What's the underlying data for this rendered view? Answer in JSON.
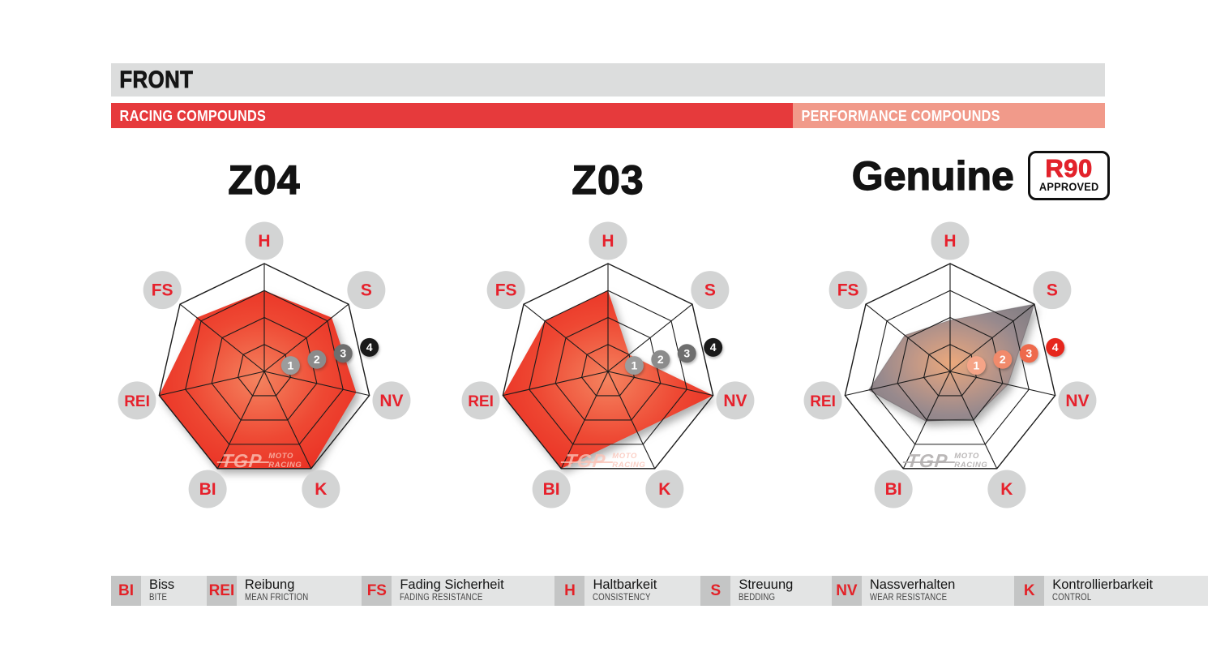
{
  "header": {
    "title": "FRONT",
    "racing_label": "RACING COMPOUNDS",
    "performance_label": "PERFORMANCE COMPOUNDS",
    "title_bar_color": "#dcdddd",
    "racing_color": "#e63a3c",
    "performance_color": "#f19a8a"
  },
  "charts": [
    {
      "title": "Z04",
      "group": "RACING COMPOUNDS",
      "fill_stops": [
        [
          "0%",
          "#f4835f"
        ],
        [
          "55%",
          "#ee4833"
        ],
        [
          "100%",
          "#e92c21"
        ]
      ],
      "marker_colors": [
        "#9c9c9c",
        "#8b8b8b",
        "#6e6e6e",
        "#1a1a1a"
      ],
      "stroke": "none"
    },
    {
      "title": "Z03",
      "group": "RACING COMPOUNDS",
      "fill_stops": [
        [
          "0%",
          "#f4835f"
        ],
        [
          "55%",
          "#ee4833"
        ],
        [
          "100%",
          "#e92c21"
        ]
      ],
      "marker_colors": [
        "#9c9c9c",
        "#8b8b8b",
        "#6e6e6e",
        "#1a1a1a"
      ],
      "stroke": "none"
    },
    {
      "title": "Genuine",
      "group": "PERFORMANCE COMPOUNDS",
      "badge": {
        "r90": "R90",
        "approved": "APPROVED"
      },
      "fill_stops": [
        [
          "0%",
          "#eaa87c"
        ],
        [
          "38%",
          "#bf9787"
        ],
        [
          "72%",
          "#97898d"
        ],
        [
          "100%",
          "#868085"
        ]
      ],
      "marker_colors": [
        "#f5a487",
        "#f18a6b",
        "#ee6a4c",
        "#e6271d"
      ],
      "stroke": "rgba(95,90,95,0.45)"
    }
  ],
  "axis_label_color": "#e6212c",
  "axis_circle_color": "#d3d4d4",
  "grid_color": "#1b1b1b",
  "watermark": {
    "main": "TGP",
    "sub1": "MOTO",
    "sub2": "RACING"
  },
  "legend": {
    "items": [
      {
        "abbr": "BI",
        "de": "Biss",
        "en": "BITE"
      },
      {
        "abbr": "REI",
        "de": "Reibung",
        "en": "MEAN FRICTION"
      },
      {
        "abbr": "FS",
        "de": "Fading Sicherheit",
        "en": "FADING RESISTANCE"
      },
      {
        "abbr": "H",
        "de": "Haltbarkeit",
        "en": "CONSISTENCY"
      },
      {
        "abbr": "S",
        "de": "Streuung",
        "en": "BEDDING"
      },
      {
        "abbr": "NV",
        "de": "Nassverhalten",
        "en": "WEAR RESISTANCE"
      },
      {
        "abbr": "K",
        "de": "Kontrollierbarkeit",
        "en": "CONTROL"
      }
    ]
  },
  "chart_data": {
    "type": "radar",
    "axes": [
      "H",
      "S",
      "NV",
      "K",
      "BI",
      "REI",
      "FS"
    ],
    "axis_meaning": {
      "H": "Haltbarkeit / Consistency",
      "S": "Streuung / Bedding",
      "NV": "Nassverhalten / Wear resistance",
      "K": "Kontrollierbarkeit / Control",
      "BI": "Biss / Bite",
      "REI": "Reibung / Mean friction",
      "FS": "Fading Sicherheit / Fading resistance"
    },
    "scale": {
      "min": 0,
      "max": 4,
      "rings": 4,
      "tick_labels": [
        "1",
        "2",
        "3",
        "4"
      ]
    },
    "legend_position": "bottom",
    "grid": true,
    "series": [
      {
        "name": "Z04",
        "group": "RACING COMPOUNDS",
        "values": {
          "H": 3,
          "S": 3.2,
          "NV": 3.5,
          "K": 4,
          "BI": 4,
          "REI": 4,
          "FS": 3.2
        }
      },
      {
        "name": "Z03",
        "group": "RACING COMPOUNDS",
        "values": {
          "H": 3,
          "S": 1,
          "NV": 4,
          "K": 2.5,
          "BI": 4,
          "REI": 4,
          "FS": 3
        }
      },
      {
        "name": "Genuine",
        "group": "PERFORMANCE COMPOUNDS",
        "badge": "R90 APPROVED",
        "values": {
          "H": 1.9,
          "S": 4,
          "NV": 2.2,
          "K": 1.95,
          "BI": 2.05,
          "REI": 3.1,
          "FS": 2.15
        }
      }
    ]
  }
}
